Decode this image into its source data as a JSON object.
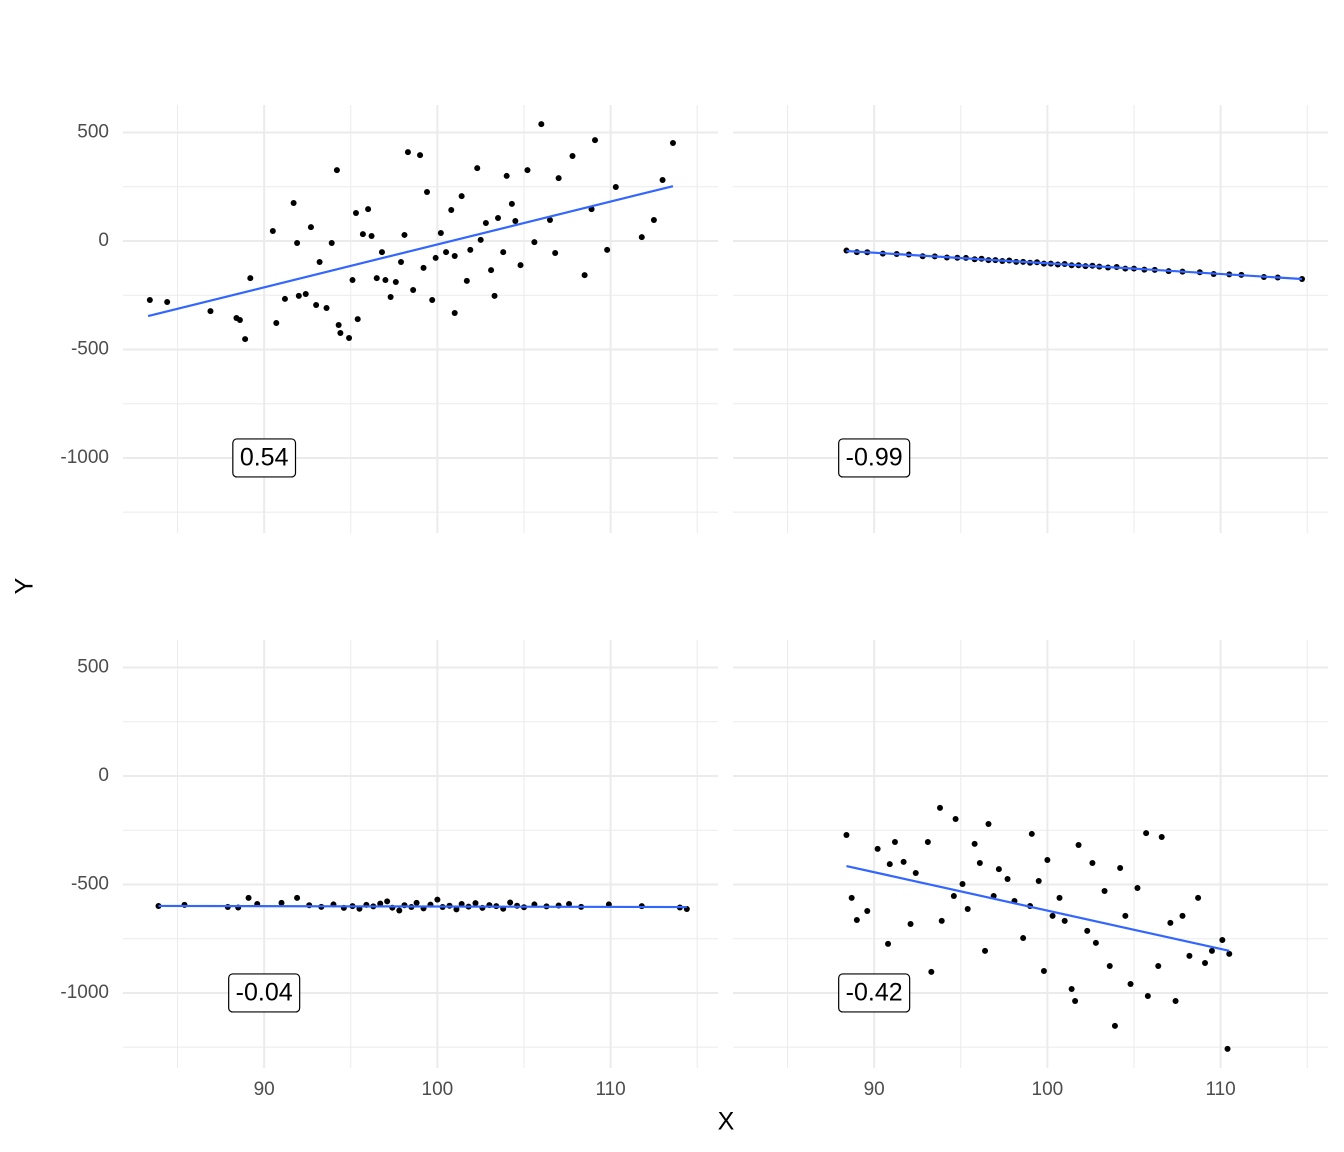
{
  "chart_data": {
    "type": "scatter",
    "x_label": "X",
    "y_label": "Y",
    "xlim": [
      81.85,
      116.2
    ],
    "ylim": [
      -1346,
      627
    ],
    "xticks": [
      90,
      100,
      110
    ],
    "yticks": [
      -1000,
      -500,
      0,
      500
    ],
    "grid": true,
    "point_color": "#000000",
    "line_color": "#3366ff",
    "panels": [
      {
        "annotation": {
          "text": 0.54,
          "x": 90,
          "y": -1000
        },
        "fit": {
          "x": [
            83.3,
            113.6
          ],
          "y": [
            -346,
            253
          ]
        },
        "points": {
          "x": [
            83.4,
            84.4,
            86.9,
            88.4,
            88.6,
            88.9,
            89.2,
            90.5,
            90.7,
            91.2,
            91.7,
            91.9,
            92.0,
            92.4,
            92.7,
            93.0,
            93.2,
            93.6,
            93.9,
            94.2,
            94.3,
            94.4,
            94.9,
            95.1,
            95.3,
            95.4,
            95.7,
            96.0,
            96.2,
            96.5,
            96.8,
            97.0,
            97.3,
            97.6,
            97.9,
            98.1,
            98.3,
            98.6,
            99.0,
            99.2,
            99.4,
            99.7,
            99.9,
            100.2,
            100.5,
            100.8,
            101.0,
            101.0,
            101.4,
            101.7,
            101.9,
            102.3,
            102.5,
            102.8,
            103.1,
            103.3,
            103.5,
            103.8,
            104.0,
            104.3,
            104.5,
            104.8,
            105.2,
            105.6,
            106.0,
            106.5,
            106.8,
            107.0,
            107.8,
            108.5,
            108.9,
            109.1,
            109.8,
            110.3,
            111.8,
            112.5,
            113.0,
            113.6
          ],
          "y": [
            -272,
            -281,
            -323,
            -355,
            -364,
            -452,
            -171,
            46,
            -378,
            -267,
            175,
            -9,
            -253,
            -244,
            64,
            -295,
            -97,
            -309,
            -9,
            327,
            -387,
            -424,
            -447,
            -180,
            129,
            -360,
            32,
            147,
            23,
            -171,
            -51,
            -180,
            -258,
            -189,
            -97,
            28,
            410,
            -226,
            396,
            -124,
            226,
            -272,
            -78,
            37,
            -51,
            143,
            -69,
            -332,
            207,
            -184,
            -41,
            336,
            5,
            83,
            -134,
            -253,
            106,
            -51,
            300,
            171,
            92,
            -111,
            327,
            -5,
            539,
            97,
            -55,
            290,
            392,
            -157,
            147,
            465,
            -41,
            249,
            18,
            97,
            281,
            452
          ]
        }
      },
      {
        "annotation": {
          "text": -0.99,
          "x": 90,
          "y": -1000
        },
        "fit": {
          "x": [
            88.4,
            114.7
          ],
          "y": [
            -46,
            -175
          ]
        },
        "points": {
          "x": [
            88.4,
            89.0,
            89.6,
            90.5,
            91.3,
            92.0,
            92.8,
            93.5,
            94.2,
            94.8,
            95.3,
            95.8,
            96.2,
            96.6,
            97.0,
            97.4,
            97.8,
            98.2,
            98.6,
            99.0,
            99.4,
            99.8,
            100.2,
            100.6,
            101.0,
            101.4,
            101.8,
            102.2,
            102.6,
            103.0,
            103.5,
            104.0,
            104.5,
            105.0,
            105.6,
            106.2,
            107.0,
            107.8,
            108.8,
            109.6,
            110.5,
            111.2,
            112.5,
            113.3,
            114.7
          ],
          "y": [
            -44,
            -51,
            -52,
            -58,
            -60,
            -62,
            -70,
            -71,
            -76,
            -77,
            -78,
            -84,
            -82,
            -88,
            -88,
            -92,
            -90,
            -96,
            -96,
            -100,
            -98,
            -104,
            -104,
            -108,
            -106,
            -112,
            -112,
            -116,
            -114,
            -118,
            -122,
            -120,
            -127,
            -127,
            -132,
            -133,
            -139,
            -141,
            -144,
            -152,
            -154,
            -156,
            -166,
            -168,
            -175
          ]
        }
      },
      {
        "annotation": {
          "text": -0.04,
          "x": 90,
          "y": -1000
        },
        "fit": {
          "x": [
            83.9,
            114.4
          ],
          "y": [
            -599,
            -604
          ]
        },
        "points": {
          "x": [
            83.9,
            85.4,
            87.9,
            88.5,
            89.1,
            89.6,
            91.0,
            91.9,
            92.6,
            93.3,
            94.0,
            94.6,
            95.1,
            95.5,
            95.9,
            96.3,
            96.7,
            97.1,
            97.4,
            97.8,
            98.1,
            98.5,
            98.8,
            99.2,
            99.6,
            100.0,
            100.3,
            100.7,
            101.1,
            101.4,
            101.8,
            102.2,
            102.6,
            103.0,
            103.4,
            103.8,
            104.2,
            104.6,
            105.0,
            105.6,
            106.3,
            107.0,
            107.6,
            108.3,
            109.9,
            111.8,
            114.0,
            114.4
          ],
          "y": [
            -599,
            -594,
            -604,
            -606,
            -562,
            -590,
            -585,
            -562,
            -596,
            -603,
            -592,
            -608,
            -600,
            -612,
            -594,
            -601,
            -588,
            -578,
            -607,
            -620,
            -596,
            -604,
            -585,
            -610,
            -593,
            -570,
            -604,
            -598,
            -615,
            -590,
            -602,
            -586,
            -608,
            -595,
            -600,
            -612,
            -583,
            -598,
            -605,
            -592,
            -601,
            -597,
            -590,
            -603,
            -592,
            -600,
            -606,
            -613
          ]
        }
      },
      {
        "annotation": {
          "text": -0.42,
          "x": 90,
          "y": -1000
        },
        "fit": {
          "x": [
            88.4,
            110.5
          ],
          "y": [
            -415,
            -806
          ]
        },
        "points": {
          "x": [
            88.4,
            88.7,
            89.0,
            89.6,
            90.2,
            90.8,
            90.9,
            91.2,
            91.7,
            92.1,
            92.4,
            93.1,
            93.3,
            93.8,
            93.9,
            94.6,
            94.7,
            95.1,
            95.4,
            95.8,
            96.1,
            96.4,
            96.6,
            96.9,
            97.2,
            97.7,
            98.1,
            98.6,
            99.0,
            99.1,
            99.5,
            99.8,
            100.0,
            100.3,
            100.7,
            101.0,
            101.4,
            101.6,
            101.8,
            102.3,
            102.6,
            102.8,
            103.3,
            103.6,
            103.9,
            104.2,
            104.5,
            104.8,
            105.2,
            105.7,
            105.8,
            106.4,
            106.6,
            107.1,
            107.4,
            107.8,
            108.2,
            108.7,
            109.1,
            109.5,
            110.1,
            110.4,
            110.5
          ],
          "y": [
            -272,
            -562,
            -664,
            -622,
            -336,
            -774,
            -406,
            -304,
            -396,
            -682,
            -447,
            -304,
            -903,
            -147,
            -668,
            -553,
            -198,
            -498,
            -613,
            -313,
            -401,
            -806,
            -221,
            -553,
            -429,
            -475,
            -576,
            -747,
            -599,
            -267,
            -484,
            -899,
            -387,
            -645,
            -562,
            -668,
            -982,
            -1037,
            -318,
            -714,
            -401,
            -769,
            -530,
            -876,
            -1152,
            -424,
            -645,
            -959,
            -516,
            -263,
            -1014,
            -876,
            -281,
            -677,
            -1037,
            -645,
            -829,
            -562,
            -862,
            -806,
            -756,
            -1258,
            -820
          ]
        }
      }
    ]
  }
}
